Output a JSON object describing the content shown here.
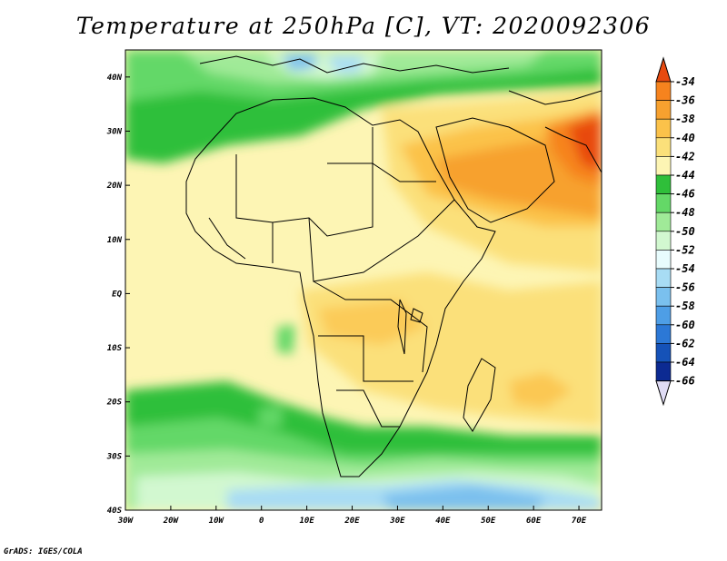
{
  "title": "Temperature at 250hPa [C], VT: 2020092306",
  "credit": "GrADS: IGES/COLA",
  "map": {
    "variable": "Temperature",
    "level": "250hPa",
    "units": "C",
    "valid_time": "2020092306",
    "lon_ticks": [
      "30W",
      "20W",
      "10W",
      "0",
      "10E",
      "20E",
      "30E",
      "40E",
      "50E",
      "60E",
      "70E"
    ],
    "lat_ticks": [
      "40N",
      "30N",
      "20N",
      "10N",
      "EQ",
      "10S",
      "20S",
      "30S",
      "40S"
    ],
    "lon_range": [
      -30,
      75
    ],
    "lat_range": [
      -40,
      45
    ]
  },
  "colorbar": {
    "labels": [
      "-34",
      "-36",
      "-38",
      "-40",
      "-42",
      "-44",
      "-46",
      "-48",
      "-50",
      "-52",
      "-54",
      "-56",
      "-58",
      "-60",
      "-62",
      "-64",
      "-66"
    ],
    "colors": [
      "#e84a10",
      "#f6831e",
      "#f7a12f",
      "#fbc24a",
      "#fbe07a",
      "#fdf5b4",
      "#2fbf3a",
      "#64d867",
      "#a0ea98",
      "#d2f8d0",
      "#e8fcfd",
      "#a8dcf4",
      "#7ac0ee",
      "#4e9ee6",
      "#2c78d6",
      "#1552b8",
      "#0c2a92",
      "#0a0a6a",
      "#e0dcf5"
    ]
  }
}
